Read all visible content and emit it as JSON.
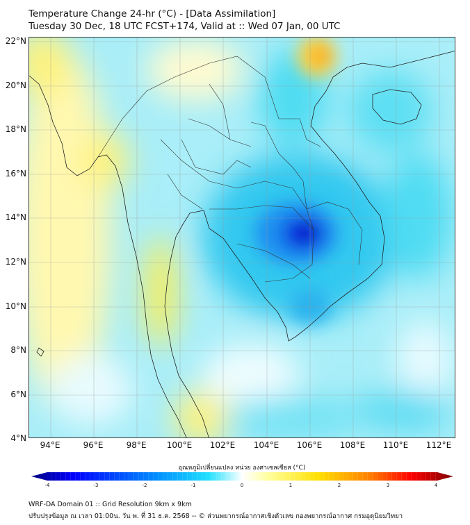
{
  "header": {
    "title": "Temperature Change 24-hr (°C) - [Data Assimilation]",
    "subtitle": "Tuesday 30 Dec, 18 UTC FCST+174, Valid at :: Wed 07 Jan, 00 UTC"
  },
  "map": {
    "lat_labels": [
      "22°N",
      "20°N",
      "18°N",
      "16°N",
      "14°N",
      "12°N",
      "10°N",
      "8°N",
      "6°N",
      "4°N"
    ],
    "lon_labels": [
      "94°E",
      "96°E",
      "98°E",
      "100°E",
      "102°E",
      "104°E",
      "106°E",
      "108°E",
      "110°E",
      "112°E"
    ],
    "extent": {
      "lon": [
        93,
        112.8
      ],
      "lat": [
        4,
        22.2
      ]
    }
  },
  "colorbar": {
    "label": "อุณหภูมิเปลี่ยนแปลง หน่วย องศาเซลเซียส (°C)",
    "ticks": [
      "-4",
      "-3",
      "-2",
      "-1",
      "0",
      "1",
      "2",
      "3",
      "4"
    ],
    "range": [
      -4,
      4
    ],
    "colors": [
      "#00007f",
      "#0000ff",
      "#0080ff",
      "#00e5ff",
      "#c8f8ff",
      "#ffffff",
      "#ffffa0",
      "#ffe000",
      "#ff8000",
      "#ff0000",
      "#7f0000"
    ]
  },
  "footer": {
    "line1": "WRF-DA Domain 01 :: Grid Resolution 9km x 9km",
    "line2": "ปรับปรุงข้อมูล ณ เวลา 01:00น. วัน พ. ที่ 31 ธ.ค. 2568 -- © ส่วนพยากรณ์อากาศเชิงตัวเลข กองพยากรณ์อากาศ กรมอุตุนิยมวิทยา"
  }
}
